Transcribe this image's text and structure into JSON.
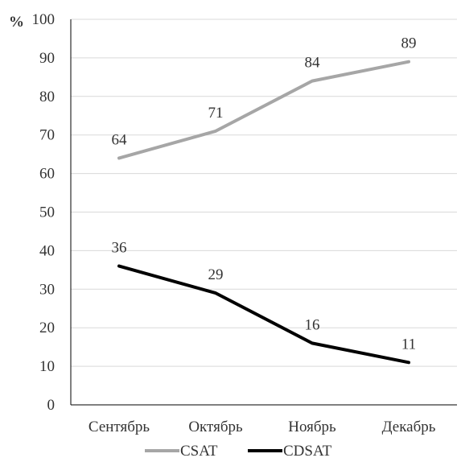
{
  "chart_data": {
    "type": "line",
    "title": "",
    "xlabel": "",
    "ylabel": "",
    "y_unit_label": "%",
    "categories": [
      "Сентябрь",
      "Октябрь",
      "Ноябрь",
      "Декабрь"
    ],
    "ylim": [
      0,
      100
    ],
    "yticks": [
      "0",
      "10",
      "20",
      "30",
      "40",
      "50",
      "60",
      "70",
      "80",
      "90",
      "100"
    ],
    "grid": true,
    "legend_position": "bottom",
    "series": [
      {
        "name": "CSAT",
        "color": "#a6a6a6",
        "values": [
          64,
          71,
          84,
          89
        ],
        "labels": [
          "64",
          "71",
          "84",
          "89"
        ]
      },
      {
        "name": "CDSAT",
        "color": "#000000",
        "values": [
          36,
          29,
          16,
          11
        ],
        "labels": [
          "36",
          "29",
          "16",
          "11"
        ]
      }
    ]
  }
}
